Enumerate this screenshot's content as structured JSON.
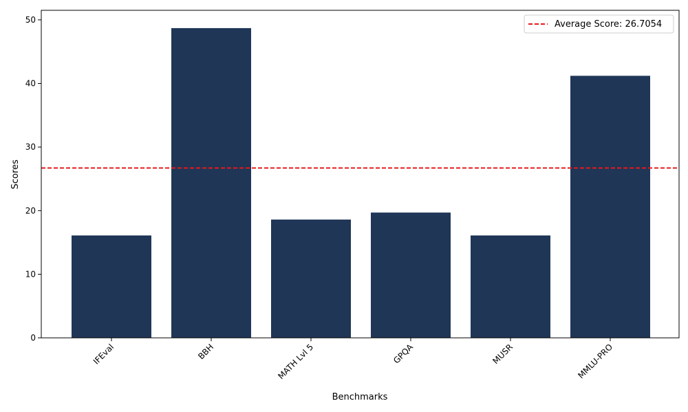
{
  "chart_data": {
    "type": "bar",
    "categories": [
      "IFEval",
      "BBH",
      "MATH Lvl 5",
      "GPQA",
      "MUSR",
      "MMLU-PRO"
    ],
    "values": [
      16.1,
      48.7,
      18.6,
      19.7,
      16.1,
      41.2
    ],
    "xlabel": "Benchmarks",
    "ylabel": "Scores",
    "ylim": [
      0,
      51.5
    ],
    "yticks": [
      0,
      10,
      20,
      30,
      40,
      50
    ],
    "bar_color": "#1f3657",
    "average_line": {
      "value": 26.7054,
      "label": "Average Score: 26.7054",
      "color": "#e41a1c",
      "style": "dashed"
    },
    "legend_placement": "top-right",
    "grid": false,
    "x_tick_rotation_deg": 45
  }
}
